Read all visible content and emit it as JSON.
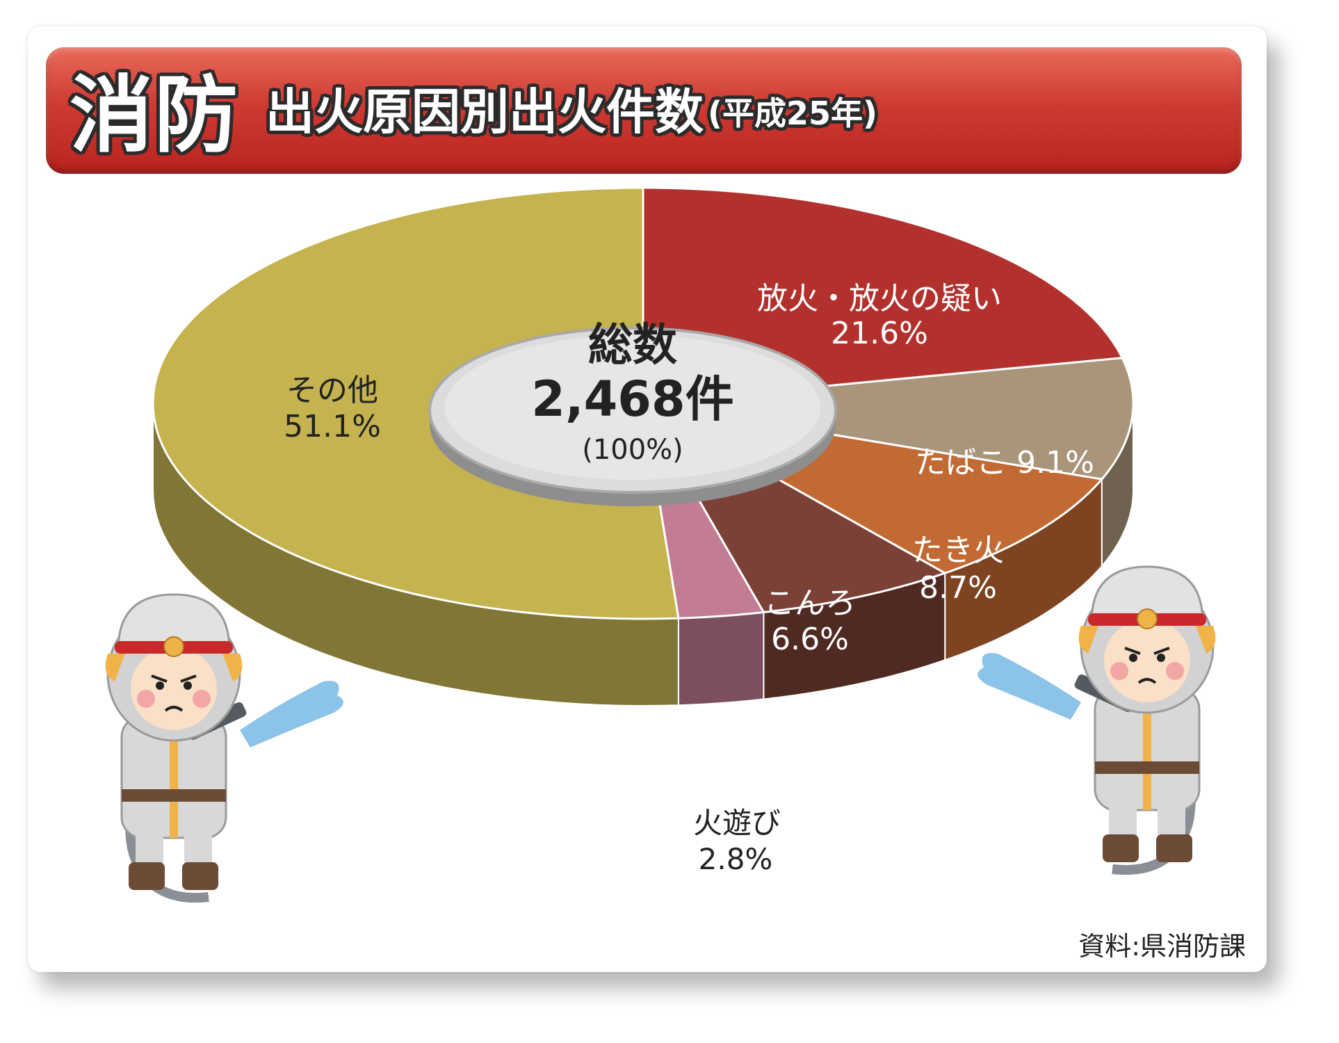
{
  "header": {
    "title_main": "消防",
    "title_sub": "出火原因別出火件数",
    "title_year": "(平成25年)"
  },
  "chart_data": {
    "type": "pie",
    "title": "出火原因別出火件数(平成25年)",
    "slices": [
      {
        "label": "放火・放火の疑い",
        "value": 21.6,
        "value_label": "21.6%",
        "color": "#b3312d",
        "side_color": "#7d1f1c"
      },
      {
        "label": "たばこ",
        "value": 9.1,
        "value_label": "9.1%",
        "color": "#a8957a",
        "side_color": "#6f6250"
      },
      {
        "label": "たき火",
        "value": 8.7,
        "value_label": "8.7%",
        "color": "#c16a33",
        "side_color": "#7e4320"
      },
      {
        "label": "こんろ",
        "value": 6.6,
        "value_label": "6.6%",
        "color": "#7c4136",
        "side_color": "#4f2a23"
      },
      {
        "label": "火遊び",
        "value": 2.8,
        "value_label": "2.8%",
        "color": "#c27d94",
        "side_color": "#7c4e5e"
      },
      {
        "label": "その他",
        "value": 51.1,
        "value_label": "51.1%",
        "color": "#c4b34e",
        "side_color": "#807636"
      }
    ],
    "center": {
      "label": "総数",
      "total": "2,468件",
      "percent": "(100%)"
    }
  },
  "source": "資料:県消防課",
  "colors": {
    "banner": "#cf3b33",
    "center_disc": "#d8d8d8"
  }
}
